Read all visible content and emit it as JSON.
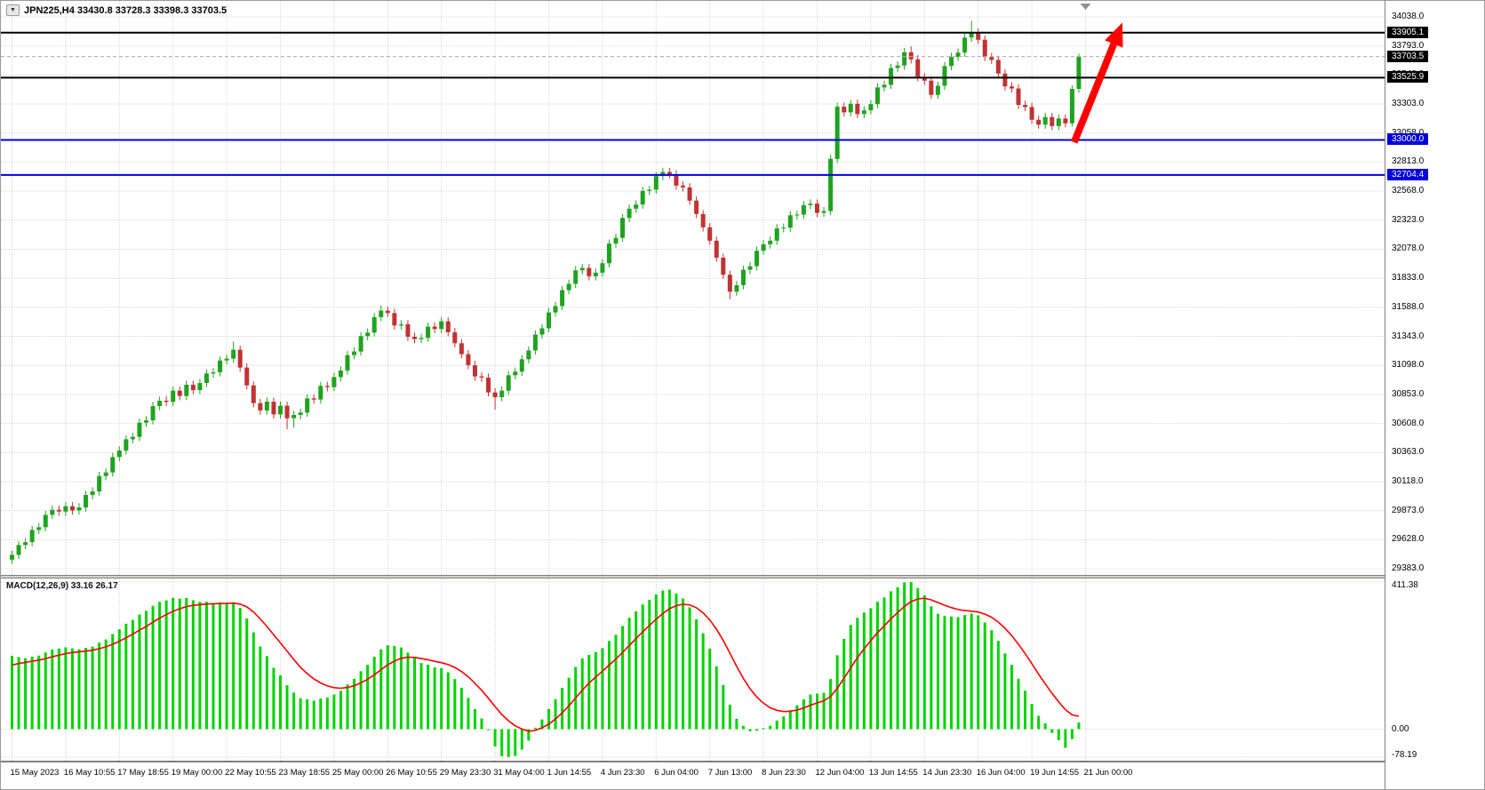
{
  "header": {
    "ohlc_text": "JPN225,H4 33430.8 33728.3 33398.3 33703.5"
  },
  "icons": {
    "chart_dropdown": "▼"
  },
  "chart_data": [
    {
      "type": "candlestick",
      "symbol": "JPN225",
      "timeframe": "H4",
      "ohlc_display": {
        "open": "33430.8",
        "high": "33728.3",
        "low": "33398.3",
        "close": "33703.5"
      },
      "current_price": 33703.5,
      "current_price_label": "33703.5",
      "ylim": [
        29290,
        34130
      ],
      "y_axis_ticks": [
        34038.0,
        33793.0,
        33548.0,
        33303.0,
        33058.0,
        32813.0,
        32568.0,
        32323.0,
        32078.0,
        31833.0,
        31588.0,
        31343.0,
        31098.0,
        30853.0,
        30608.0,
        30363.0,
        30118.0,
        29873.0,
        29628.0,
        29383.0
      ],
      "x_axis_labels": [
        "15 May 2023",
        "16 May 10:55",
        "17 May 18:55",
        "19 May 00:00",
        "22 May 10:55",
        "23 May 18:55",
        "25 May 00:00",
        "26 May 10:55",
        "29 May 23:30",
        "31 May 04:00",
        "1 Jun 14:55",
        "4 Jun 23:30",
        "6 Jun 04:00",
        "7 Jun 13:00",
        "8 Jun 23:30",
        "12 Jun 04:00",
        "13 Jun 14:55",
        "14 Jun 23:30",
        "16 Jun 04:00",
        "19 Jun 14:55",
        "21 Jun 00:00"
      ],
      "candles_per_gridline": 8,
      "horizontal_lines": [
        {
          "price": 33905.1,
          "label": "33905.1",
          "color": "#000000",
          "width": 2
        },
        {
          "price": 33525.9,
          "label": "33525.9",
          "color": "#000000",
          "width": 2
        },
        {
          "price": 33000.0,
          "label": "33000.0",
          "color": "#0000dd",
          "width": 2
        },
        {
          "price": 32704.4,
          "label": "32704.4",
          "color": "#0000dd",
          "width": 2
        }
      ],
      "annotations": {
        "trend_arrow": {
          "from_bar": 158.3,
          "from_price": 32980,
          "to_bar": 165.5,
          "to_price": 33990,
          "color": "#ff0000"
        }
      },
      "colors": {
        "up": "#1fa31f",
        "down": "#c23232",
        "grid": "#c9c9c9",
        "background": "#ffffff"
      },
      "candles": [
        [
          29460,
          29535,
          29425,
          29500
        ],
        [
          29500,
          29618,
          29465,
          29583
        ],
        [
          29583,
          29642,
          29548,
          29607
        ],
        [
          29607,
          29745,
          29572,
          29710
        ],
        [
          29710,
          29768,
          29675,
          29733
        ],
        [
          29733,
          29872,
          29698,
          29837
        ],
        [
          29837,
          29915,
          29802,
          29880
        ],
        [
          29880,
          29915,
          29830,
          29865
        ],
        [
          29865,
          29945,
          29830,
          29910
        ],
        [
          29910,
          29945,
          29840,
          29875
        ],
        [
          29875,
          29935,
          29840,
          29900
        ],
        [
          29900,
          30040,
          29865,
          30005
        ],
        [
          30005,
          30070,
          29970,
          30035
        ],
        [
          30035,
          30200,
          30000,
          30165
        ],
        [
          30165,
          30230,
          30130,
          30195
        ],
        [
          30195,
          30360,
          30160,
          30325
        ],
        [
          30325,
          30415,
          30290,
          30380
        ],
        [
          30380,
          30510,
          30345,
          30475
        ],
        [
          30475,
          30530,
          30440,
          30495
        ],
        [
          30495,
          30650,
          30460,
          30615
        ],
        [
          30615,
          30670,
          30580,
          30635
        ],
        [
          30635,
          30790,
          30600,
          30755
        ],
        [
          30755,
          30835,
          30720,
          30800
        ],
        [
          30800,
          30840,
          30755,
          30790
        ],
        [
          30790,
          30920,
          30755,
          30885
        ],
        [
          30885,
          30920,
          30805,
          30840
        ],
        [
          30840,
          30970,
          30805,
          30935
        ],
        [
          30935,
          30970,
          30855,
          30890
        ],
        [
          30890,
          30985,
          30855,
          30950
        ],
        [
          30950,
          31065,
          30915,
          31030
        ],
        [
          31030,
          31075,
          30995,
          31040
        ],
        [
          31040,
          31175,
          31005,
          31140
        ],
        [
          31140,
          31190,
          31105,
          31155
        ],
        [
          31155,
          31300,
          31120,
          31230
        ],
        [
          31230,
          31265,
          31045,
          31080
        ],
        [
          31080,
          31115,
          30895,
          30930
        ],
        [
          30930,
          30965,
          30745,
          30780
        ],
        [
          30780,
          30815,
          30683,
          30718
        ],
        [
          30718,
          30827,
          30683,
          30792
        ],
        [
          30792,
          30827,
          30650,
          30685
        ],
        [
          30685,
          30793,
          30650,
          30758
        ],
        [
          30758,
          30793,
          30560,
          30652
        ],
        [
          30652,
          30715,
          30575,
          30680
        ],
        [
          30680,
          30735,
          30645,
          30700
        ],
        [
          30700,
          30855,
          30665,
          30820
        ],
        [
          30820,
          30855,
          30775,
          30810
        ],
        [
          30810,
          30960,
          30775,
          30925
        ],
        [
          30925,
          30960,
          30880,
          30915
        ],
        [
          30915,
          31035,
          30880,
          31000
        ],
        [
          31000,
          31090,
          30965,
          31055
        ],
        [
          31055,
          31220,
          31020,
          31185
        ],
        [
          31185,
          31250,
          31150,
          31215
        ],
        [
          31215,
          31380,
          31180,
          31345
        ],
        [
          31345,
          31410,
          31310,
          31375
        ],
        [
          31375,
          31540,
          31340,
          31505
        ],
        [
          31505,
          31605,
          31470,
          31560
        ],
        [
          31560,
          31595,
          31505,
          31540
        ],
        [
          31540,
          31575,
          31400,
          31435
        ],
        [
          31435,
          31480,
          31400,
          31445
        ],
        [
          31445,
          31480,
          31305,
          31340
        ],
        [
          31340,
          31375,
          31285,
          31320
        ],
        [
          31320,
          31365,
          31285,
          31330
        ],
        [
          31330,
          31460,
          31295,
          31425
        ],
        [
          31425,
          31460,
          31370,
          31405
        ],
        [
          31405,
          31505,
          31370,
          31470
        ],
        [
          31470,
          31505,
          31343,
          31378
        ],
        [
          31378,
          31413,
          31250,
          31285
        ],
        [
          31285,
          31320,
          31158,
          31193
        ],
        [
          31193,
          31228,
          31065,
          31100
        ],
        [
          31100,
          31135,
          30970,
          31005
        ],
        [
          31005,
          31040,
          30960,
          30995
        ],
        [
          30995,
          31030,
          30835,
          30870
        ],
        [
          30870,
          30905,
          30725,
          30830
        ],
        [
          30830,
          30920,
          30795,
          30885
        ],
        [
          30885,
          31050,
          30850,
          31015
        ],
        [
          31015,
          31080,
          30980,
          31045
        ],
        [
          31045,
          31185,
          31010,
          31150
        ],
        [
          31150,
          31259,
          31115,
          31224
        ],
        [
          31224,
          31393,
          31189,
          31358
        ],
        [
          31358,
          31446,
          31323,
          31411
        ],
        [
          31411,
          31580,
          31376,
          31545
        ],
        [
          31545,
          31634,
          31510,
          31599
        ],
        [
          31599,
          31768,
          31564,
          31733
        ],
        [
          31733,
          31821,
          31698,
          31786
        ],
        [
          31786,
          31935,
          31751,
          31900
        ],
        [
          31900,
          31955,
          31865,
          31920
        ],
        [
          31920,
          31955,
          31815,
          31850
        ],
        [
          31850,
          31915,
          31815,
          31880
        ],
        [
          31880,
          31995,
          31845,
          31960
        ],
        [
          31960,
          32161,
          31925,
          32126
        ],
        [
          32126,
          32209,
          32091,
          32174
        ],
        [
          32174,
          32377,
          32139,
          32342
        ],
        [
          32342,
          32455,
          32307,
          32420
        ],
        [
          32420,
          32490,
          32385,
          32455
        ],
        [
          32455,
          32605,
          32420,
          32570
        ],
        [
          32570,
          32615,
          32535,
          32580
        ],
        [
          32580,
          32730,
          32545,
          32695
        ],
        [
          32695,
          32765,
          32660,
          32730
        ],
        [
          32730,
          32765,
          32675,
          32710
        ],
        [
          32710,
          32745,
          32580,
          32615
        ],
        [
          32615,
          32650,
          32565,
          32600
        ],
        [
          32600,
          32635,
          32453,
          32488
        ],
        [
          32488,
          32523,
          32340,
          32375
        ],
        [
          32375,
          32410,
          32228,
          32263
        ],
        [
          32263,
          32298,
          32115,
          32150
        ],
        [
          32150,
          32185,
          31972,
          32007
        ],
        [
          32007,
          32042,
          31828,
          31863
        ],
        [
          31863,
          31898,
          31655,
          31720
        ],
        [
          31720,
          31810,
          31685,
          31775
        ],
        [
          31775,
          31940,
          31740,
          31905
        ],
        [
          31905,
          31970,
          31870,
          31935
        ],
        [
          31935,
          32100,
          31900,
          32065
        ],
        [
          32065,
          32155,
          32030,
          32120
        ],
        [
          32120,
          32185,
          32085,
          32150
        ],
        [
          32150,
          32290,
          32115,
          32255
        ],
        [
          32255,
          32295,
          32220,
          32260
        ],
        [
          32260,
          32400,
          32225,
          32365
        ],
        [
          32365,
          32405,
          32330,
          32370
        ],
        [
          32370,
          32485,
          32335,
          32450
        ],
        [
          32450,
          32498,
          32415,
          32463
        ],
        [
          32463,
          32498,
          32350,
          32385
        ],
        [
          32385,
          32435,
          32350,
          32400
        ],
        [
          32400,
          32875,
          32365,
          32840
        ],
        [
          32840,
          33315,
          32805,
          33280
        ],
        [
          33280,
          33315,
          33198,
          33233
        ],
        [
          33233,
          33340,
          33198,
          33305
        ],
        [
          33305,
          33340,
          33183,
          33218
        ],
        [
          33218,
          33285,
          33183,
          33250
        ],
        [
          33250,
          33337,
          33215,
          33302
        ],
        [
          33302,
          33478,
          33267,
          33443
        ],
        [
          33443,
          33500,
          33408,
          33465
        ],
        [
          33465,
          33642,
          33430,
          33607
        ],
        [
          33607,
          33663,
          33572,
          33628
        ],
        [
          33628,
          33775,
          33593,
          33740
        ],
        [
          33740,
          33790,
          33645,
          33680
        ],
        [
          33680,
          33715,
          33495,
          33530
        ],
        [
          33530,
          33565,
          33465,
          33500
        ],
        [
          33500,
          33535,
          33345,
          33380
        ],
        [
          33380,
          33492,
          33345,
          33457
        ],
        [
          33457,
          33658,
          33422,
          33623
        ],
        [
          33623,
          33735,
          33588,
          33700
        ],
        [
          33700,
          33772,
          33665,
          33737
        ],
        [
          33737,
          33898,
          33702,
          33863
        ],
        [
          33863,
          34005,
          33828,
          33900
        ],
        [
          33900,
          33940,
          33810,
          33845
        ],
        [
          33845,
          33880,
          33665,
          33700
        ],
        [
          33700,
          33735,
          33640,
          33675
        ],
        [
          33675,
          33710,
          33525,
          33560
        ],
        [
          33560,
          33595,
          33417,
          33452
        ],
        [
          33452,
          33487,
          33399,
          33434
        ],
        [
          33434,
          33469,
          33261,
          33296
        ],
        [
          33296,
          33331,
          33243,
          33278
        ],
        [
          33278,
          33313,
          33135,
          33170
        ],
        [
          33170,
          33205,
          33094,
          33129
        ],
        [
          33129,
          33228,
          33094,
          33193
        ],
        [
          33193,
          33228,
          33082,
          33117
        ],
        [
          33117,
          33216,
          33082,
          33181
        ],
        [
          33181,
          33216,
          33105,
          33140
        ],
        [
          33140,
          33460,
          33110,
          33431
        ],
        [
          33430.8,
          33728.3,
          33398.3,
          33703.5
        ]
      ]
    },
    {
      "type": "macd",
      "label": "MACD(12,26,9) 33.16 26.17",
      "fast": 12,
      "slow": 26,
      "signal_period": 9,
      "current_macd": "33.16",
      "current_signal": "26.17",
      "y_axis_labels": [
        "411.38",
        "0.00",
        "-78.19"
      ],
      "colors": {
        "histogram": "#00d400",
        "signal": "#ff0000"
      }
    }
  ]
}
